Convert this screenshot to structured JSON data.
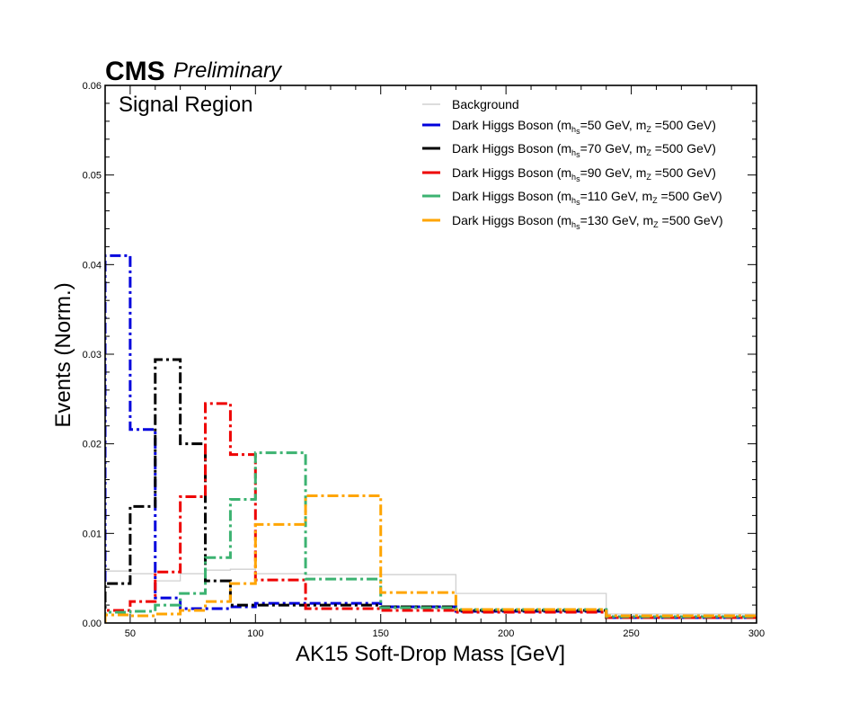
{
  "header": {
    "experiment": "CMS",
    "status": "Preliminary"
  },
  "chart_data": {
    "type": "histogram-step",
    "region_label": "Signal Region",
    "xlabel": "AK15 Soft-Drop Mass [GeV]",
    "ylabel": "Events (Norm.)",
    "xlim": [
      40,
      300
    ],
    "ylim": [
      0,
      0.06
    ],
    "xticks": [
      50,
      100,
      150,
      200,
      250,
      300
    ],
    "yticks": [
      0.0,
      0.01,
      0.02,
      0.03,
      0.04,
      0.05,
      0.06
    ],
    "ytick_labels": [
      "0.00",
      "0.01",
      "0.02",
      "0.03",
      "0.04",
      "0.05",
      "0.06"
    ],
    "bin_edges": [
      40,
      50,
      60,
      70,
      80,
      90,
      100,
      120,
      150,
      180,
      240,
      300
    ],
    "legend_position": "top-right",
    "series": [
      {
        "name": "Background",
        "color": "#d0d0d0",
        "style": "solid",
        "values": [
          0.0058,
          0.0055,
          0.0047,
          0.0055,
          0.0059,
          0.006,
          0.0055,
          0.0054,
          0.0054,
          0.0033,
          0.001
        ]
      },
      {
        "name": "Dark Higgs Boson (m",
        "sub_h": "h",
        "sub_s": "s",
        "mass_text": "=50 GeV, m",
        "sub_z": "Z",
        "tail_text": " =500 GeV)",
        "color": "#0000dd",
        "style": "dashdot",
        "values": [
          0.041,
          0.0216,
          0.0028,
          0.0016,
          0.0016,
          0.0018,
          0.0022,
          0.0022,
          0.0018,
          0.0013,
          0.0006
        ]
      },
      {
        "name": "Dark Higgs Boson (m",
        "sub_h": "h",
        "sub_s": "s",
        "mass_text": "=70 GeV, m",
        "sub_z": "Z",
        "tail_text": " =500 GeV)",
        "color": "#000000",
        "style": "dashdot",
        "values": [
          0.0044,
          0.013,
          0.0294,
          0.02,
          0.0047,
          0.002,
          0.002,
          0.002,
          0.0018,
          0.0014,
          0.0007
        ]
      },
      {
        "name": "Dark Higgs Boson (m",
        "sub_h": "h",
        "sub_s": "s",
        "mass_text": "=90 GeV, m",
        "sub_z": "Z",
        "tail_text": " =500 GeV)",
        "color": "#ee0000",
        "style": "dashdot",
        "values": [
          0.0014,
          0.0024,
          0.0057,
          0.0141,
          0.0245,
          0.0188,
          0.0048,
          0.0016,
          0.0014,
          0.0012,
          0.0006
        ]
      },
      {
        "name": "Dark Higgs Boson (m",
        "sub_h": "h",
        "sub_s": "s",
        "mass_text": "=110 GeV, m",
        "sub_z": "Z",
        "tail_text": " =500 GeV)",
        "color": "#3cb371",
        "style": "dashdot",
        "values": [
          0.0012,
          0.0013,
          0.002,
          0.0033,
          0.0073,
          0.0138,
          0.019,
          0.0049,
          0.0017,
          0.0015,
          0.0007
        ]
      },
      {
        "name": "Dark Higgs Boson (m",
        "sub_h": "h",
        "sub_s": "s",
        "mass_text": "=130 GeV, m",
        "sub_z": "Z",
        "tail_text": " =500 GeV)",
        "color": "#ffa500",
        "style": "dashdot",
        "values": [
          0.0009,
          0.0008,
          0.001,
          0.0014,
          0.0024,
          0.0044,
          0.011,
          0.0142,
          0.0034,
          0.0015,
          0.0008
        ]
      }
    ]
  }
}
